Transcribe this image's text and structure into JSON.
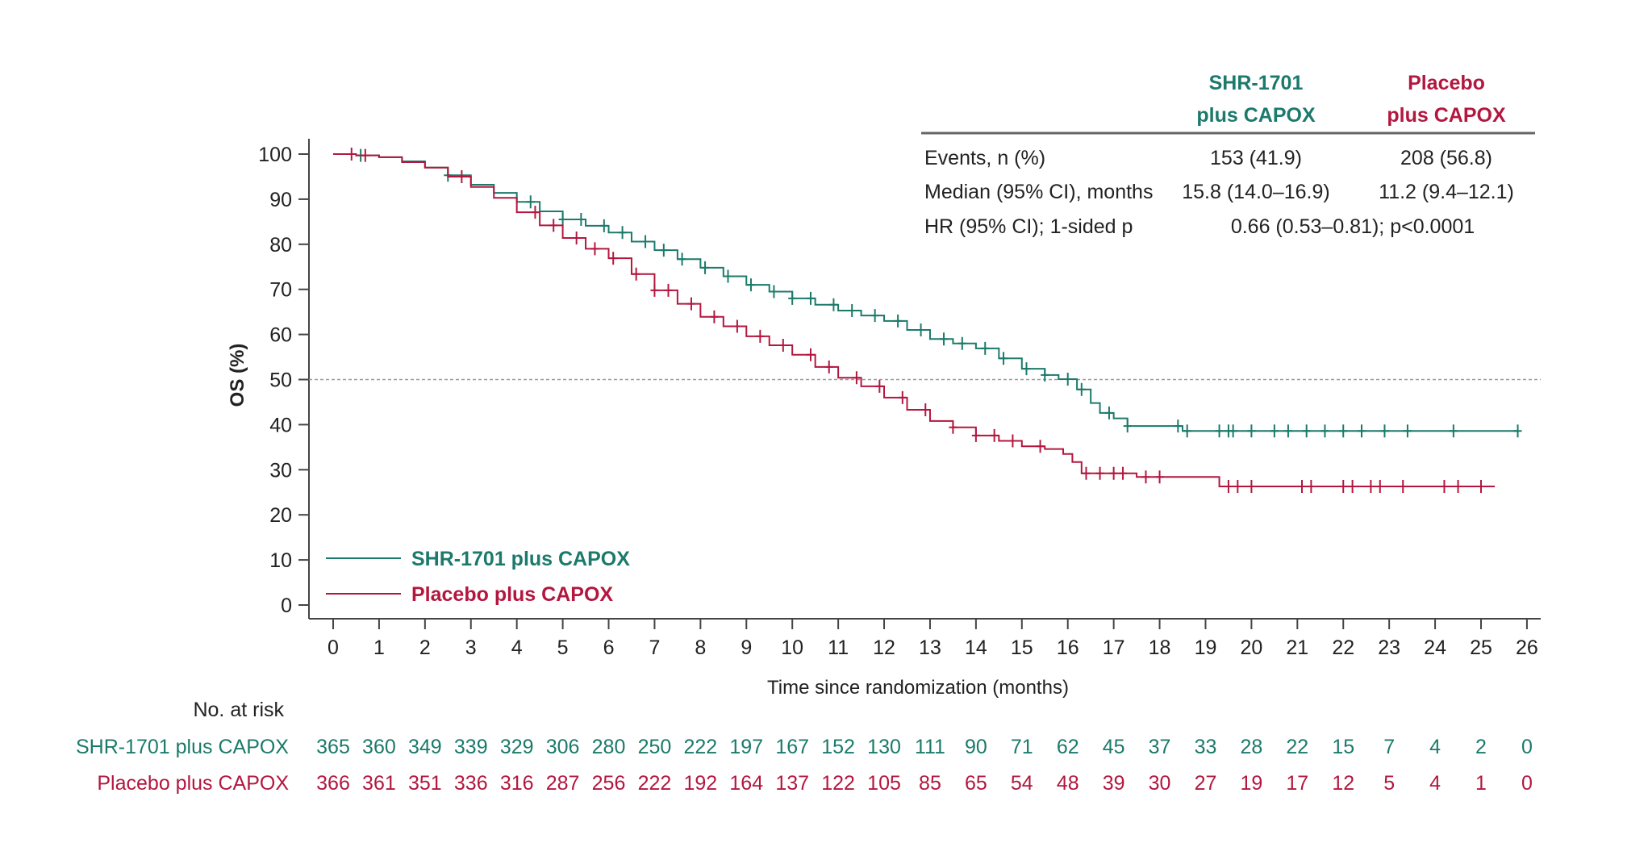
{
  "chart_data": {
    "type": "line",
    "subtype": "kaplan-meier",
    "title": "",
    "xlabel": "Time since randomization (months)",
    "ylabel": "OS (%)",
    "xlim": [
      0,
      26
    ],
    "ylim": [
      0,
      100
    ],
    "x_ticks": [
      0,
      1,
      2,
      3,
      4,
      5,
      6,
      7,
      8,
      9,
      10,
      11,
      12,
      13,
      14,
      15,
      16,
      17,
      18,
      19,
      20,
      21,
      22,
      23,
      24,
      25,
      26
    ],
    "y_ticks": [
      0,
      10,
      20,
      30,
      40,
      50,
      60,
      70,
      80,
      90,
      100
    ],
    "reference_line": {
      "y": 50,
      "style": "dashed"
    },
    "grid": false,
    "legend_position": "bottom-left",
    "series": [
      {
        "name": "SHR-1701 plus CAPOX",
        "color": "#1b7a6b",
        "x": [
          0,
          0.5,
          1,
          1.5,
          2,
          2.5,
          3,
          3.5,
          4,
          4.5,
          5,
          5.5,
          6,
          6.5,
          7,
          7.5,
          8,
          8.5,
          9,
          9.5,
          10,
          10.5,
          11,
          11.5,
          12,
          12.5,
          13,
          13.5,
          14,
          14.5,
          15,
          15.5,
          15.8,
          16.2,
          16.5,
          16.7,
          17.0,
          17.3,
          18.5,
          25.8
        ],
        "y": [
          100,
          99.7,
          99.3,
          98.4,
          97.0,
          95.3,
          93.2,
          91.4,
          89.4,
          87.3,
          85.5,
          84.1,
          82.6,
          80.6,
          78.7,
          76.7,
          74.8,
          72.9,
          71.0,
          69.5,
          68.0,
          66.6,
          65.3,
          64.2,
          63.0,
          61.0,
          59.0,
          58.0,
          56.9,
          54.7,
          52.4,
          51.0,
          50.1,
          47.8,
          44.8,
          42.6,
          41.4,
          39.7,
          38.6,
          38.6
        ],
        "censor_x": [
          0.6,
          2.5,
          4.3,
          5.0,
          5.4,
          5.9,
          6.3,
          6.8,
          7.2,
          7.6,
          8.1,
          8.6,
          9.1,
          9.6,
          10.0,
          10.4,
          10.9,
          11.3,
          11.8,
          12.3,
          12.8,
          13.3,
          13.7,
          14.2,
          14.6,
          15.1,
          15.5,
          16.0,
          16.3,
          16.9,
          17.3,
          18.4,
          18.6,
          19.3,
          19.5,
          19.6,
          20.0,
          20.5,
          20.8,
          21.2,
          21.6,
          22.0,
          22.4,
          22.9,
          23.4,
          24.4,
          25.8
        ]
      },
      {
        "name": "Placebo plus CAPOX",
        "color": "#b3173f",
        "x": [
          0,
          0.5,
          1,
          1.5,
          2,
          2.5,
          3,
          3.5,
          4,
          4.5,
          5,
          5.5,
          6,
          6.5,
          7,
          7.5,
          8,
          8.5,
          9,
          9.5,
          10,
          10.5,
          11,
          11.5,
          12,
          12.5,
          13,
          13.5,
          14,
          14.5,
          15,
          15.5,
          15.9,
          16.1,
          16.3,
          17.5,
          19.3,
          25.3
        ],
        "y": [
          100,
          99.7,
          99.3,
          98.2,
          97.0,
          95.0,
          92.7,
          90.3,
          87.1,
          84.2,
          81.4,
          79.0,
          76.9,
          73.4,
          69.8,
          66.8,
          63.9,
          61.8,
          59.6,
          57.6,
          55.5,
          52.8,
          50.4,
          48.5,
          46.0,
          43.3,
          40.8,
          39.4,
          37.6,
          36.4,
          35.2,
          34.6,
          33.5,
          31.7,
          29.2,
          28.4,
          26.3,
          26.3
        ],
        "censor_x": [
          0.4,
          0.7,
          2.8,
          4.4,
          4.8,
          5.3,
          5.7,
          6.1,
          6.6,
          7.0,
          7.3,
          7.8,
          8.3,
          8.8,
          9.3,
          9.8,
          10.4,
          10.8,
          11.4,
          11.9,
          12.4,
          12.9,
          13.5,
          14.0,
          14.4,
          14.8,
          15.4,
          16.4,
          16.7,
          17.0,
          17.2,
          17.7,
          18.0,
          19.5,
          19.7,
          20.0,
          21.1,
          21.3,
          22.0,
          22.2,
          22.6,
          22.8,
          23.3,
          24.2,
          24.5,
          25.0
        ]
      }
    ],
    "stats_table": {
      "columns": [
        "",
        "SHR-1701 plus CAPOX",
        "Placebo plus CAPOX"
      ],
      "header_lines": [
        [
          "SHR-1701",
          "plus CAPOX"
        ],
        [
          "Placebo",
          "plus CAPOX"
        ]
      ],
      "rows": [
        {
          "label": "Events, n (%)",
          "values": [
            "153 (41.9)",
            "208 (56.8)"
          ]
        },
        {
          "label": "Median (95% CI), months",
          "values": [
            "15.8 (14.0–16.9)",
            "11.2 (9.4–12.1)"
          ]
        },
        {
          "label": "HR (95% CI); 1-sided p",
          "combined": "0.66 (0.53–0.81); p<0.0001"
        }
      ]
    },
    "risk_table": {
      "title": "No. at risk",
      "rows": [
        {
          "label": "SHR-1701 plus CAPOX",
          "values": [
            365,
            360,
            349,
            339,
            329,
            306,
            280,
            250,
            222,
            197,
            167,
            152,
            130,
            111,
            90,
            71,
            62,
            45,
            37,
            33,
            28,
            22,
            15,
            7,
            4,
            2,
            0
          ]
        },
        {
          "label": "Placebo plus CAPOX",
          "values": [
            366,
            361,
            351,
            336,
            316,
            287,
            256,
            222,
            192,
            164,
            137,
            122,
            105,
            85,
            65,
            54,
            48,
            39,
            30,
            27,
            19,
            17,
            12,
            5,
            4,
            1,
            0
          ]
        }
      ]
    }
  }
}
